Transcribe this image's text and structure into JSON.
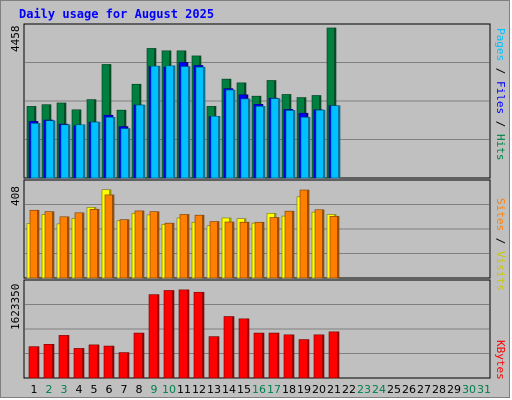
{
  "chart_data": {
    "type": "bar",
    "title": "Daily usage for August 2025",
    "categories": [
      "1",
      "2",
      "3",
      "4",
      "5",
      "6",
      "7",
      "8",
      "9",
      "10",
      "11",
      "12",
      "13",
      "14",
      "15",
      "16",
      "17",
      "18",
      "19",
      "20",
      "21",
      "22",
      "23",
      "24",
      "25",
      "26",
      "27",
      "28",
      "29",
      "30",
      "31"
    ],
    "weekend_days": [
      "2",
      "3",
      "9",
      "10",
      "16",
      "17",
      "23",
      "24",
      "30",
      "31"
    ],
    "panels": [
      {
        "name": "hits-files-pages",
        "max_label": "4458",
        "ylim": [
          0,
          4458
        ],
        "legend": [
          "Pages",
          "Files",
          "Hits"
        ],
        "series": [
          {
            "name": "Hits",
            "color": "#008040",
            "values": [
              2100,
              2150,
              2200,
              2000,
              2300,
              3330,
              1990,
              2750,
              3800,
              3730,
              3730,
              3580,
              2100,
              2900,
              2790,
              2400,
              2860,
              2450,
              2360,
              2420,
              4400,
              0,
              0,
              0,
              0,
              0,
              0,
              0,
              0,
              0,
              0
            ]
          },
          {
            "name": "Files",
            "color": "#0000ff",
            "values": [
              1660,
              1700,
              1580,
              1530,
              1640,
              1840,
              1510,
              2140,
              3270,
              3250,
              3390,
              3300,
              1800,
              2620,
              2440,
              2160,
              2340,
              2010,
              1900,
              2000,
              2120,
              0,
              0,
              0,
              0,
              0,
              0,
              0,
              0,
              0,
              0
            ]
          },
          {
            "name": "Pages",
            "color": "#00c0ff",
            "values": [
              1600,
              1680,
              1560,
              1560,
              1640,
              1780,
              1450,
              2140,
              3280,
              3290,
              3270,
              3250,
              1810,
              2580,
              2320,
              2100,
              2330,
              1980,
              1780,
              1990,
              2120,
              0,
              0,
              0,
              0,
              0,
              0,
              0,
              0,
              0,
              0
            ]
          }
        ]
      },
      {
        "name": "visits-sites",
        "max_label": "408",
        "ylim": [
          0,
          408
        ],
        "legend": [
          "Sites",
          "Visits"
        ],
        "series": [
          {
            "name": "Visits",
            "color": "#ffff00",
            "values": [
              232,
              270,
              230,
              253,
              300,
              375,
              243,
              275,
              268,
              228,
              255,
              237,
              222,
              255,
              252,
              233,
              275,
              263,
              345,
              280,
              270,
              0,
              0,
              0,
              0,
              0,
              0,
              0,
              0,
              0,
              0
            ]
          },
          {
            "name": "Sites",
            "color": "#ff8000",
            "values": [
              288,
              282,
              260,
              277,
              292,
              353,
              248,
              285,
              282,
              233,
              270,
              267,
              240,
              238,
              237,
              237,
              257,
              284,
              374,
              290,
              262,
              0,
              0,
              0,
              0,
              0,
              0,
              0,
              0,
              0,
              0
            ]
          }
        ]
      },
      {
        "name": "kbytes",
        "max_label": "1623350",
        "ylim": [
          0,
          1623350
        ],
        "legend": [
          "KBytes"
        ],
        "series": [
          {
            "name": "KBytes",
            "color": "#ff0000",
            "values": [
              530000,
              570000,
              720000,
              500000,
              560000,
              540000,
              430000,
              760000,
              1410000,
              1480000,
              1490000,
              1450000,
              700000,
              1040000,
              1000000,
              760000,
              760000,
              730000,
              650000,
              730000,
              780000,
              0,
              0,
              0,
              0,
              0,
              0,
              0,
              0,
              0,
              0
            ]
          }
        ]
      }
    ]
  },
  "colors": {
    "background": "#c0c0c0",
    "plot_border": "#000000",
    "gridline": "#808080",
    "title": "#0000ff",
    "weekday_label": "#000000",
    "weekend_label": "#00804c"
  }
}
